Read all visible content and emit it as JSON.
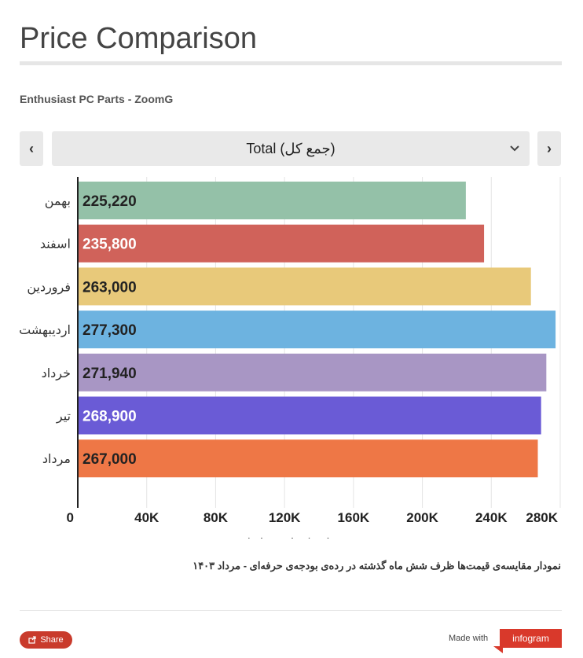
{
  "header": {
    "title": "Price Comparison",
    "subtitle": "Enthusiast PC Parts - ZoomG"
  },
  "selector": {
    "selected": "Total (جمع کل)",
    "prev_icon": "chevron-left-icon",
    "next_icon": "chevron-right-icon",
    "caret_icon": "chevron-down-icon"
  },
  "chart_data": {
    "type": "bar",
    "orientation": "horizontal",
    "categories": [
      "بهمن",
      "اسفند",
      "فروردین",
      "اردیبهشت",
      "خرداد",
      "تیر",
      "مرداد"
    ],
    "values": [
      225220,
      235800,
      263000,
      277300,
      271940,
      268900,
      267000
    ],
    "value_labels": [
      "225,220",
      "235,800",
      "263,000",
      "277,300",
      "271,940",
      "268,900",
      "267,000"
    ],
    "colors": [
      "#94c1a8",
      "#d0625a",
      "#e8c97a",
      "#6db3e0",
      "#a896c4",
      "#6a5bd6",
      "#ee7746"
    ],
    "label_colors": [
      "#222222",
      "#ffffff",
      "#222222",
      "#222222",
      "#222222",
      "#ffffff",
      "#222222"
    ],
    "xlim": [
      0,
      280000
    ],
    "x_ticks": [
      0,
      40000,
      80000,
      120000,
      160000,
      200000,
      240000,
      280000
    ],
    "x_tick_labels": [
      "0",
      "40K",
      "80K",
      "120K",
      "160K",
      "200K",
      "240K",
      "280K"
    ],
    "xlabel": "قیمت بر مبنای (هزار تومان)",
    "grid": true
  },
  "caption": "نمودار مقایسه‌ی قیمت‌ها ظرف شش ماه گذشته در رده‌ی بودجه‌ی حرفه‌ای - مرداد ۱۴۰۳",
  "footer": {
    "share_label": "Share",
    "made_with": "Made with",
    "brand": "infogram"
  }
}
